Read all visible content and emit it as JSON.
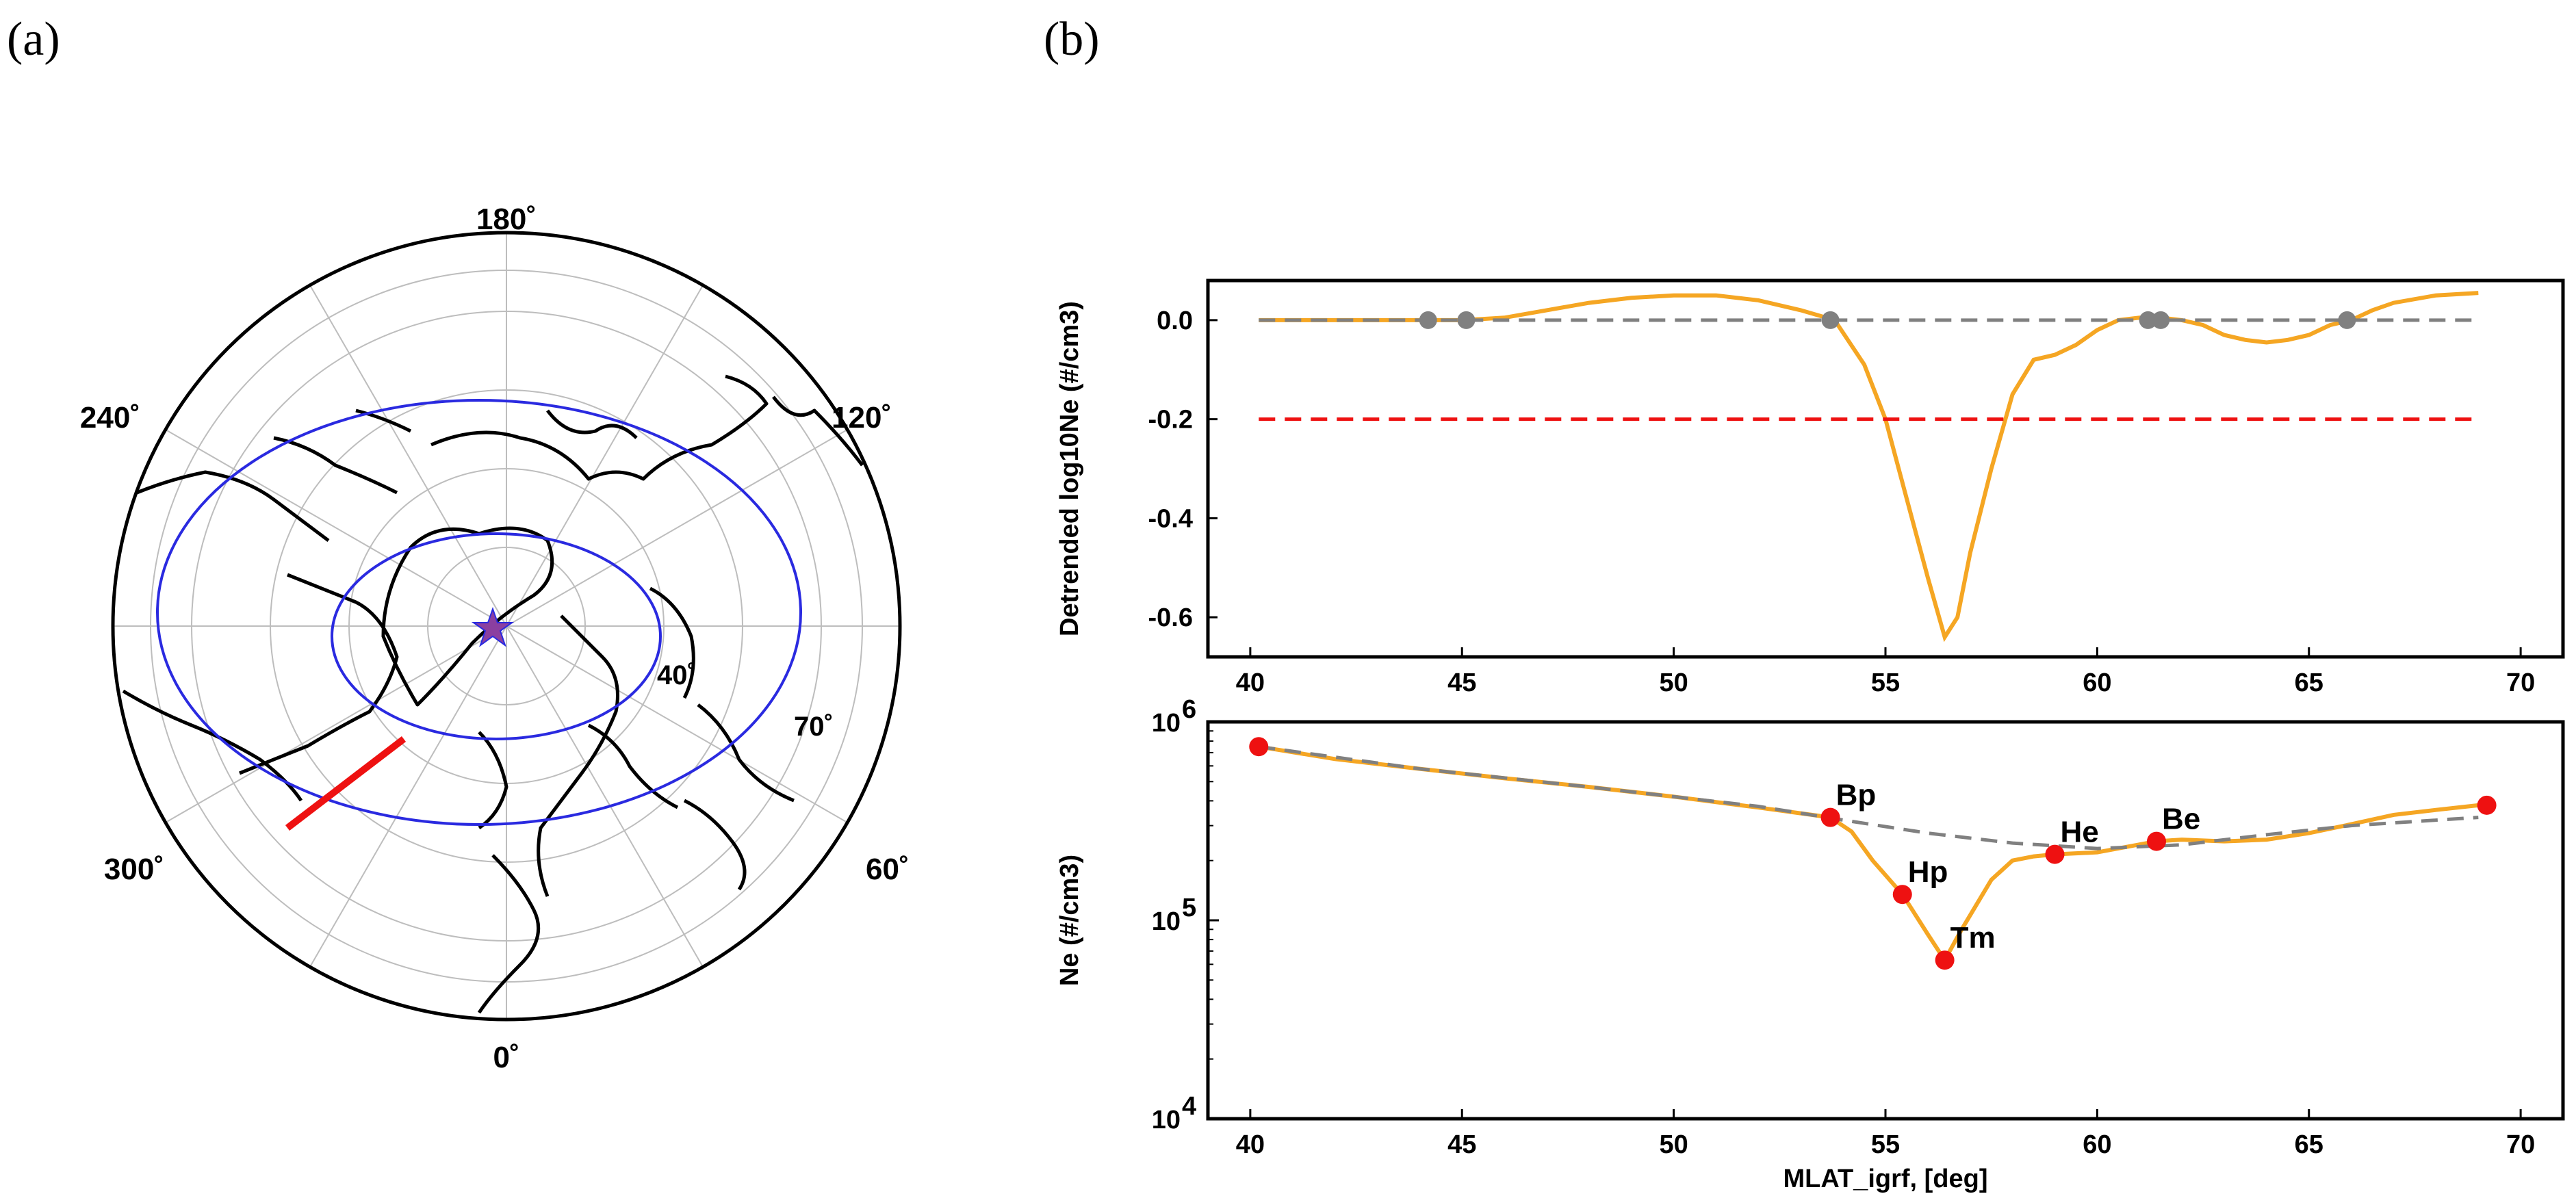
{
  "panels": {
    "a": "(a)",
    "b": "(b)"
  },
  "polar": {
    "lon_labels": [
      "180˚",
      "120˚",
      "60˚",
      "0˚",
      "300˚",
      "240˚"
    ],
    "lat_labels": [
      "40˚",
      "70˚"
    ],
    "colors": {
      "circle": "#2a2ae0",
      "track": "#ee1111",
      "star": "#8b3fa0",
      "grid": "#bdbdbd"
    }
  },
  "chart_data": [
    {
      "type": "line",
      "title": "",
      "xlabel": "",
      "ylabel": "Detrended log10Ne (#/cm3)",
      "xlim": [
        39,
        71
      ],
      "ylim": [
        -0.68,
        0.08
      ],
      "xticks": [
        40,
        45,
        50,
        55,
        60,
        65,
        70
      ],
      "yticks": [
        0.0,
        -0.2,
        -0.4,
        -0.6
      ],
      "ytick_labels": [
        "0.0",
        "-0.2",
        "-0.4",
        "-0.6"
      ],
      "series": [
        {
          "name": "detrended",
          "color": "#f5a623",
          "x": [
            40.2,
            42,
            43,
            44,
            45,
            46,
            47,
            48,
            49,
            50,
            51,
            52,
            53,
            53.8,
            54.5,
            55,
            55.5,
            56,
            56.4,
            56.7,
            57,
            57.5,
            58,
            58.5,
            59,
            59.5,
            60,
            60.5,
            61,
            61.5,
            62,
            62.5,
            63,
            63.5,
            64,
            64.5,
            65,
            65.5,
            66,
            66.5,
            67,
            68,
            69
          ],
          "y": [
            0.0,
            0.0,
            0.0,
            0.0,
            0.0,
            0.005,
            0.02,
            0.035,
            0.045,
            0.05,
            0.05,
            0.04,
            0.02,
            0.0,
            -0.09,
            -0.2,
            -0.36,
            -0.52,
            -0.64,
            -0.6,
            -0.47,
            -0.3,
            -0.15,
            -0.08,
            -0.07,
            -0.05,
            -0.02,
            0.0,
            0.005,
            0.005,
            0.0,
            -0.01,
            -0.03,
            -0.04,
            -0.045,
            -0.04,
            -0.03,
            -0.01,
            0.0,
            0.02,
            0.035,
            0.05,
            0.055
          ]
        },
        {
          "name": "zero-line",
          "color": "#808080",
          "x": [
            40.2,
            69
          ],
          "y": [
            0.0,
            0.0
          ]
        },
        {
          "name": "threshold",
          "color": "#ee1111",
          "x": [
            40.2,
            69
          ],
          "y": [
            -0.2,
            -0.2
          ]
        }
      ],
      "markers": {
        "color": "#808080",
        "x": [
          44.2,
          45.1,
          53.7,
          61.2,
          61.5,
          65.9
        ],
        "y": [
          0,
          0,
          0,
          0,
          0,
          0
        ]
      }
    },
    {
      "type": "line",
      "title": "",
      "xlabel": "MLAT_igrf, [deg]",
      "ylabel": "Ne (#/cm3)",
      "xlim": [
        39,
        71
      ],
      "yscale": "log",
      "ylim": [
        10000,
        1000000
      ],
      "xticks": [
        40,
        45,
        50,
        55,
        60,
        65,
        70
      ],
      "yticks_exp": [
        6,
        5,
        4
      ],
      "series": [
        {
          "name": "Ne",
          "color": "#f5a623",
          "x": [
            40.2,
            42,
            44,
            46,
            48,
            50,
            52,
            53.7,
            54.2,
            54.7,
            55.4,
            56,
            56.4,
            56.8,
            57.5,
            58,
            58.5,
            59,
            60,
            61.4,
            62,
            63,
            64,
            65,
            66,
            67,
            68,
            69
          ],
          "y": [
            750000,
            650000,
            580000,
            520000,
            470000,
            420000,
            370000,
            330000,
            280000,
            200000,
            135000,
            85000,
            63000,
            90000,
            160000,
            200000,
            210000,
            215000,
            220000,
            250000,
            255000,
            250000,
            255000,
            275000,
            305000,
            340000,
            360000,
            380000
          ]
        },
        {
          "name": "trend",
          "color": "#808080",
          "x": [
            40.2,
            44,
            48,
            52,
            54,
            56,
            58,
            60,
            62,
            64,
            66,
            69
          ],
          "y": [
            750000,
            580000,
            470000,
            375000,
            320000,
            275000,
            245000,
            230000,
            240000,
            270000,
            300000,
            330000
          ]
        }
      ],
      "points": [
        {
          "label": "",
          "x": 40.2,
          "y": 750000
        },
        {
          "label": "Bp",
          "x": 53.7,
          "y": 330000
        },
        {
          "label": "Hp",
          "x": 55.4,
          "y": 135000
        },
        {
          "label": "Tm",
          "x": 56.4,
          "y": 63000
        },
        {
          "label": "He",
          "x": 59.0,
          "y": 215000
        },
        {
          "label": "Be",
          "x": 61.4,
          "y": 250000
        },
        {
          "label": "",
          "x": 69.2,
          "y": 380000
        }
      ],
      "point_color": "#ee1111"
    }
  ]
}
